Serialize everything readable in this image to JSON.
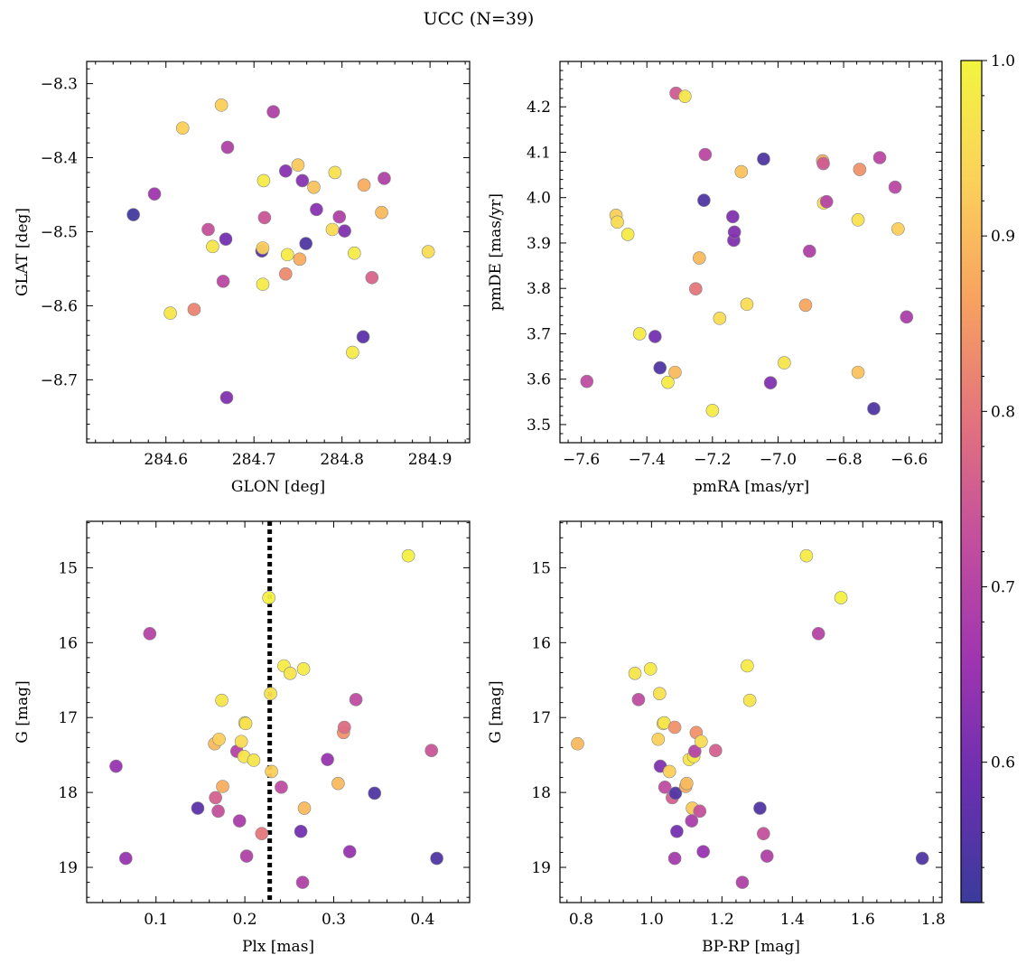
{
  "figure": {
    "title": "UCC (N=39)"
  },
  "colorbar": {
    "range": [
      0.52,
      1.0
    ],
    "ticks": [
      0.6,
      0.7,
      0.8,
      0.9,
      1.0
    ],
    "tick_labels": [
      "0.6",
      "0.7",
      "0.8",
      "0.9",
      "1.0"
    ],
    "colormap": "plasma",
    "stops": [
      "#3b3b9b",
      "#6a2fb0",
      "#9e35b0",
      "#c24e9e",
      "#e3727d",
      "#f7a160",
      "#fbd15a",
      "#f2f53f"
    ]
  },
  "chart_data": [
    {
      "type": "scatter",
      "xlabel": "GLON [deg]",
      "ylabel": "GLAT [deg]",
      "xlim": [
        284.51,
        284.945
      ],
      "ylim": [
        -8.785,
        -8.27
      ],
      "y_inverted": false,
      "xticks": [
        284.6,
        284.7,
        284.8,
        284.9
      ],
      "xtick_labels": [
        "284.6",
        "284.7",
        "284.8",
        "284.9"
      ],
      "yticks": [
        -8.7,
        -8.6,
        -8.5,
        -8.4,
        -8.3
      ],
      "ytick_labels": [
        "−8.7",
        "−8.6",
        "−8.5",
        "−8.4",
        "−8.3"
      ],
      "points": [
        {
          "x": 284.563,
          "y": -8.477,
          "c": 0.53
        },
        {
          "x": 284.587,
          "y": -8.449,
          "c": 0.66
        },
        {
          "x": 284.605,
          "y": -8.61,
          "c": 0.97
        },
        {
          "x": 284.619,
          "y": -8.36,
          "c": 0.93
        },
        {
          "x": 284.632,
          "y": -8.605,
          "c": 0.82
        },
        {
          "x": 284.648,
          "y": -8.497,
          "c": 0.73
        },
        {
          "x": 284.653,
          "y": -8.52,
          "c": 0.97
        },
        {
          "x": 284.663,
          "y": -8.329,
          "c": 0.93
        },
        {
          "x": 284.665,
          "y": -8.567,
          "c": 0.71
        },
        {
          "x": 284.668,
          "y": -8.51,
          "c": 0.6
        },
        {
          "x": 284.67,
          "y": -8.386,
          "c": 0.69
        },
        {
          "x": 284.669,
          "y": -8.724,
          "c": 0.62
        },
        {
          "x": 284.709,
          "y": -8.526,
          "c": 0.56
        },
        {
          "x": 284.71,
          "y": -8.522,
          "c": 0.93
        },
        {
          "x": 284.711,
          "y": -8.431,
          "c": 0.98
        },
        {
          "x": 284.71,
          "y": -8.571,
          "c": 0.98
        },
        {
          "x": 284.712,
          "y": -8.481,
          "c": 0.74
        },
        {
          "x": 284.722,
          "y": -8.338,
          "c": 0.69
        },
        {
          "x": 284.736,
          "y": -8.557,
          "c": 0.83
        },
        {
          "x": 284.736,
          "y": -8.418,
          "c": 0.63
        },
        {
          "x": 284.738,
          "y": -8.531,
          "c": 0.98
        },
        {
          "x": 284.75,
          "y": -8.41,
          "c": 0.92
        },
        {
          "x": 284.752,
          "y": -8.537,
          "c": 0.88
        },
        {
          "x": 284.755,
          "y": -8.431,
          "c": 0.63
        },
        {
          "x": 284.759,
          "y": -8.516,
          "c": 0.55
        },
        {
          "x": 284.768,
          "y": -8.44,
          "c": 0.91
        },
        {
          "x": 284.771,
          "y": -8.47,
          "c": 0.63
        },
        {
          "x": 284.789,
          "y": -8.497,
          "c": 0.95
        },
        {
          "x": 284.792,
          "y": -8.42,
          "c": 0.96
        },
        {
          "x": 284.797,
          "y": -8.48,
          "c": 0.69
        },
        {
          "x": 284.803,
          "y": -8.499,
          "c": 0.62
        },
        {
          "x": 284.812,
          "y": -8.663,
          "c": 0.98
        },
        {
          "x": 284.814,
          "y": -8.529,
          "c": 0.98
        },
        {
          "x": 284.824,
          "y": -8.642,
          "c": 0.57
        },
        {
          "x": 284.825,
          "y": -8.437,
          "c": 0.88
        },
        {
          "x": 284.834,
          "y": -8.562,
          "c": 0.77
        },
        {
          "x": 284.845,
          "y": -8.474,
          "c": 0.9
        },
        {
          "x": 284.848,
          "y": -8.428,
          "c": 0.69
        },
        {
          "x": 284.898,
          "y": -8.527,
          "c": 0.95
        }
      ]
    },
    {
      "type": "scatter",
      "xlabel": "pmRA [mas/yr]",
      "ylabel": "pmDE [mas/yr]",
      "xlim": [
        -7.665,
        -6.5
      ],
      "ylim": [
        3.46,
        4.3
      ],
      "y_inverted": false,
      "xticks": [
        -7.6,
        -7.4,
        -7.2,
        -7.0,
        -6.8,
        -6.6
      ],
      "xtick_labels": [
        "−7.6",
        "−7.4",
        "−7.2",
        "−7.0",
        "−6.8",
        "−6.6"
      ],
      "yticks": [
        3.5,
        3.6,
        3.7,
        3.8,
        3.9,
        4.0,
        4.1,
        4.2
      ],
      "ytick_labels": [
        "3.5",
        "3.6",
        "3.7",
        "3.8",
        "3.9",
        "4.0",
        "4.1",
        "4.2"
      ],
      "points": [
        {
          "x": -7.583,
          "y": 3.595,
          "c": 0.72
        },
        {
          "x": -7.494,
          "y": 3.961,
          "c": 0.93
        },
        {
          "x": -7.49,
          "y": 3.946,
          "c": 0.95
        },
        {
          "x": -7.458,
          "y": 3.919,
          "c": 0.98
        },
        {
          "x": -7.422,
          "y": 3.7,
          "c": 0.98
        },
        {
          "x": -7.375,
          "y": 3.694,
          "c": 0.6
        },
        {
          "x": -7.36,
          "y": 3.625,
          "c": 0.55
        },
        {
          "x": -7.336,
          "y": 3.593,
          "c": 0.98
        },
        {
          "x": -7.314,
          "y": 3.615,
          "c": 0.9
        },
        {
          "x": -7.311,
          "y": 4.23,
          "c": 0.75
        },
        {
          "x": -7.284,
          "y": 4.223,
          "c": 0.97
        },
        {
          "x": -7.251,
          "y": 3.799,
          "c": 0.8
        },
        {
          "x": -7.24,
          "y": 3.867,
          "c": 0.9
        },
        {
          "x": -7.226,
          "y": 3.994,
          "c": 0.55
        },
        {
          "x": -7.222,
          "y": 4.095,
          "c": 0.71
        },
        {
          "x": -7.2,
          "y": 3.531,
          "c": 0.98
        },
        {
          "x": -7.178,
          "y": 3.734,
          "c": 0.95
        },
        {
          "x": -7.138,
          "y": 3.958,
          "c": 0.62
        },
        {
          "x": -7.135,
          "y": 3.906,
          "c": 0.62
        },
        {
          "x": -7.133,
          "y": 3.924,
          "c": 0.62
        },
        {
          "x": -7.112,
          "y": 4.057,
          "c": 0.91
        },
        {
          "x": -7.095,
          "y": 3.765,
          "c": 0.95
        },
        {
          "x": -7.044,
          "y": 4.085,
          "c": 0.55
        },
        {
          "x": -7.023,
          "y": 3.592,
          "c": 0.62
        },
        {
          "x": -6.981,
          "y": 3.636,
          "c": 0.97
        },
        {
          "x": -6.916,
          "y": 3.763,
          "c": 0.87
        },
        {
          "x": -6.904,
          "y": 3.882,
          "c": 0.69
        },
        {
          "x": -6.864,
          "y": 4.081,
          "c": 0.88
        },
        {
          "x": -6.862,
          "y": 4.075,
          "c": 0.75
        },
        {
          "x": -6.861,
          "y": 3.988,
          "c": 0.96
        },
        {
          "x": -6.852,
          "y": 3.991,
          "c": 0.7
        },
        {
          "x": -6.756,
          "y": 3.615,
          "c": 0.91
        },
        {
          "x": -6.756,
          "y": 3.951,
          "c": 0.96
        },
        {
          "x": -6.751,
          "y": 4.062,
          "c": 0.84
        },
        {
          "x": -6.708,
          "y": 3.535,
          "c": 0.55
        },
        {
          "x": -6.69,
          "y": 4.088,
          "c": 0.71
        },
        {
          "x": -6.643,
          "y": 4.023,
          "c": 0.71
        },
        {
          "x": -6.634,
          "y": 3.931,
          "c": 0.93
        },
        {
          "x": -6.608,
          "y": 3.737,
          "c": 0.68
        }
      ]
    },
    {
      "type": "scatter",
      "xlabel": "Plx [mas]",
      "ylabel": "G [mag]",
      "xlim": [
        0.022,
        0.453
      ],
      "ylim": [
        14.38,
        19.47
      ],
      "y_inverted": true,
      "vline": {
        "x": 0.228,
        "style": "dotted"
      },
      "xticks": [
        0.1,
        0.2,
        0.3,
        0.4
      ],
      "xtick_labels": [
        "0.1",
        "0.2",
        "0.3",
        "0.4"
      ],
      "yticks": [
        15,
        16,
        17,
        18,
        19
      ],
      "ytick_labels": [
        "15",
        "16",
        "17",
        "18",
        "19"
      ],
      "points": [
        {
          "x": 0.055,
          "y": 17.65,
          "c": 0.65
        },
        {
          "x": 0.066,
          "y": 18.88,
          "c": 0.65
        },
        {
          "x": 0.093,
          "y": 15.88,
          "c": 0.7
        },
        {
          "x": 0.147,
          "y": 18.21,
          "c": 0.57
        },
        {
          "x": 0.166,
          "y": 17.35,
          "c": 0.9
        },
        {
          "x": 0.167,
          "y": 18.07,
          "c": 0.76
        },
        {
          "x": 0.17,
          "y": 18.25,
          "c": 0.73
        },
        {
          "x": 0.171,
          "y": 17.29,
          "c": 0.93
        },
        {
          "x": 0.174,
          "y": 16.77,
          "c": 0.97
        },
        {
          "x": 0.175,
          "y": 17.92,
          "c": 0.88
        },
        {
          "x": 0.191,
          "y": 17.45,
          "c": 0.7
        },
        {
          "x": 0.194,
          "y": 18.38,
          "c": 0.68
        },
        {
          "x": 0.196,
          "y": 17.32,
          "c": 0.95
        },
        {
          "x": 0.199,
          "y": 17.52,
          "c": 0.97
        },
        {
          "x": 0.2,
          "y": 17.07,
          "c": 0.97
        },
        {
          "x": 0.201,
          "y": 17.08,
          "c": 0.96
        },
        {
          "x": 0.202,
          "y": 18.85,
          "c": 0.69
        },
        {
          "x": 0.21,
          "y": 17.57,
          "c": 0.97
        },
        {
          "x": 0.219,
          "y": 18.55,
          "c": 0.8
        },
        {
          "x": 0.227,
          "y": 15.4,
          "c": 0.99
        },
        {
          "x": 0.229,
          "y": 16.68,
          "c": 0.96
        },
        {
          "x": 0.23,
          "y": 17.72,
          "c": 0.93
        },
        {
          "x": 0.241,
          "y": 17.93,
          "c": 0.72
        },
        {
          "x": 0.244,
          "y": 16.31,
          "c": 0.98
        },
        {
          "x": 0.251,
          "y": 16.41,
          "c": 0.97
        },
        {
          "x": 0.263,
          "y": 18.52,
          "c": 0.6
        },
        {
          "x": 0.265,
          "y": 19.2,
          "c": 0.69
        },
        {
          "x": 0.266,
          "y": 16.35,
          "c": 0.98
        },
        {
          "x": 0.267,
          "y": 18.21,
          "c": 0.9
        },
        {
          "x": 0.293,
          "y": 17.56,
          "c": 0.65
        },
        {
          "x": 0.305,
          "y": 17.88,
          "c": 0.9
        },
        {
          "x": 0.311,
          "y": 17.2,
          "c": 0.84
        },
        {
          "x": 0.312,
          "y": 17.13,
          "c": 0.78
        },
        {
          "x": 0.318,
          "y": 18.79,
          "c": 0.65
        },
        {
          "x": 0.325,
          "y": 16.76,
          "c": 0.72
        },
        {
          "x": 0.346,
          "y": 18.01,
          "c": 0.55
        },
        {
          "x": 0.384,
          "y": 14.84,
          "c": 0.99
        },
        {
          "x": 0.41,
          "y": 17.44,
          "c": 0.74
        },
        {
          "x": 0.416,
          "y": 18.88,
          "c": 0.55
        }
      ]
    },
    {
      "type": "scatter",
      "xlabel": "BP-RP [mag]",
      "ylabel": "G [mag]",
      "xlim": [
        0.74,
        1.825
      ],
      "ylim": [
        14.38,
        19.47
      ],
      "y_inverted": true,
      "xticks": [
        0.8,
        1.0,
        1.2,
        1.4,
        1.6,
        1.8
      ],
      "xtick_labels": [
        "0.8",
        "1.0",
        "1.2",
        "1.4",
        "1.6",
        "1.8"
      ],
      "yticks": [
        15,
        16,
        17,
        18,
        19
      ],
      "ytick_labels": [
        "15",
        "16",
        "17",
        "18",
        "19"
      ],
      "points": [
        {
          "x": 0.79,
          "y": 17.35,
          "c": 0.9
        },
        {
          "x": 0.953,
          "y": 16.41,
          "c": 0.97
        },
        {
          "x": 0.963,
          "y": 16.76,
          "c": 0.72
        },
        {
          "x": 0.997,
          "y": 16.35,
          "c": 0.98
        },
        {
          "x": 1.019,
          "y": 17.29,
          "c": 0.93
        },
        {
          "x": 1.023,
          "y": 16.68,
          "c": 0.96
        },
        {
          "x": 1.025,
          "y": 17.65,
          "c": 0.62
        },
        {
          "x": 1.033,
          "y": 17.08,
          "c": 0.96
        },
        {
          "x": 1.036,
          "y": 17.07,
          "c": 0.97
        },
        {
          "x": 1.038,
          "y": 17.93,
          "c": 0.72
        },
        {
          "x": 1.051,
          "y": 17.72,
          "c": 0.93
        },
        {
          "x": 1.059,
          "y": 18.07,
          "c": 0.76
        },
        {
          "x": 1.066,
          "y": 17.13,
          "c": 0.84
        },
        {
          "x": 1.066,
          "y": 18.88,
          "c": 0.67
        },
        {
          "x": 1.068,
          "y": 18.01,
          "c": 0.55
        },
        {
          "x": 1.072,
          "y": 18.52,
          "c": 0.6
        },
        {
          "x": 1.097,
          "y": 17.92,
          "c": 0.88
        },
        {
          "x": 1.1,
          "y": 17.88,
          "c": 0.9
        },
        {
          "x": 1.107,
          "y": 17.56,
          "c": 0.97
        },
        {
          "x": 1.114,
          "y": 18.38,
          "c": 0.68
        },
        {
          "x": 1.116,
          "y": 18.21,
          "c": 0.92
        },
        {
          "x": 1.12,
          "y": 17.52,
          "c": 0.97
        },
        {
          "x": 1.123,
          "y": 17.45,
          "c": 0.7
        },
        {
          "x": 1.127,
          "y": 17.2,
          "c": 0.84
        },
        {
          "x": 1.137,
          "y": 18.25,
          "c": 0.73
        },
        {
          "x": 1.141,
          "y": 17.32,
          "c": 0.95
        },
        {
          "x": 1.147,
          "y": 18.79,
          "c": 0.65
        },
        {
          "x": 1.182,
          "y": 17.44,
          "c": 0.76
        },
        {
          "x": 1.258,
          "y": 19.2,
          "c": 0.69
        },
        {
          "x": 1.272,
          "y": 16.31,
          "c": 0.98
        },
        {
          "x": 1.279,
          "y": 16.77,
          "c": 0.97
        },
        {
          "x": 1.308,
          "y": 18.21,
          "c": 0.55
        },
        {
          "x": 1.318,
          "y": 18.55,
          "c": 0.73
        },
        {
          "x": 1.328,
          "y": 18.85,
          "c": 0.69
        },
        {
          "x": 1.44,
          "y": 14.84,
          "c": 0.98
        },
        {
          "x": 1.474,
          "y": 15.88,
          "c": 0.7
        },
        {
          "x": 1.538,
          "y": 15.4,
          "c": 0.99
        },
        {
          "x": 1.769,
          "y": 18.88,
          "c": 0.55
        }
      ]
    }
  ]
}
